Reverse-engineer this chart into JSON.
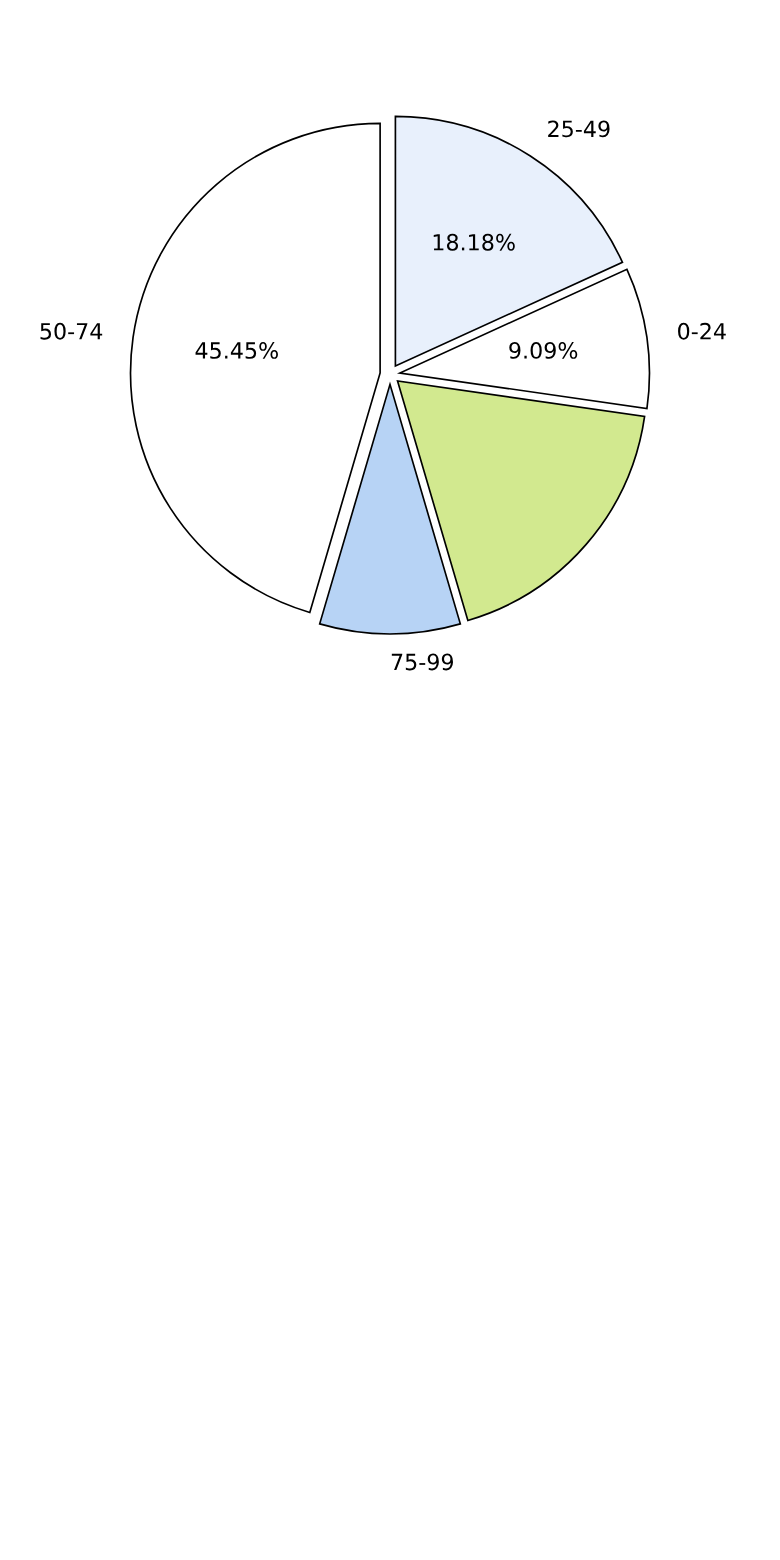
{
  "chart_data": {
    "type": "pie",
    "categories": [
      "25-49",
      "0-24",
      null,
      "75-99",
      "50-74"
    ],
    "values": [
      18.18,
      9.09,
      18.18,
      9.09,
      45.45
    ],
    "colors": [
      "#e8f0fc",
      "#ffffff",
      "#d2e98f",
      "#b7d3f5",
      "#ffffff"
    ],
    "value_labels": [
      "18.18%",
      "9.09%",
      null,
      null,
      "45.45%"
    ]
  }
}
